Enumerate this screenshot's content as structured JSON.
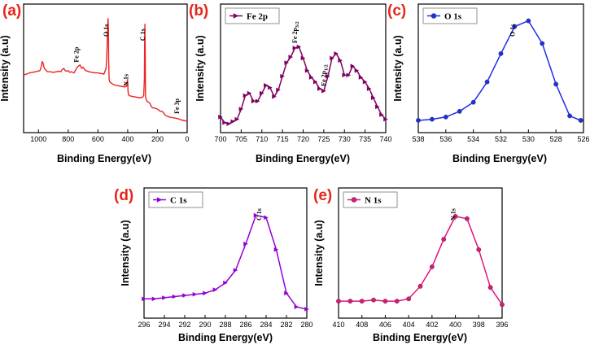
{
  "chart_data": [
    {
      "id": "a",
      "type": "line",
      "panel_label": "(a)",
      "xlabel": "Binding Energy(eV)",
      "ylabel": "Intensity (a.u)",
      "xlim": [
        1100,
        0
      ],
      "ylim": [
        0,
        1
      ],
      "xticks": [
        1000,
        800,
        600,
        400,
        200,
        0
      ],
      "color": "#ee2222",
      "marker": "none",
      "legend": "",
      "annotations": [
        "Fe 2p",
        "O 1s",
        "N 1s",
        "C 1s",
        "Fe 3p"
      ],
      "ann_x": [
        730,
        530,
        398,
        285,
        55
      ],
      "series": [
        {
          "name": "",
          "x": [
            1100,
            1060,
            1020,
            990,
            980,
            975,
            970,
            965,
            960,
            955,
            950,
            940,
            920,
            900,
            880,
            860,
            850,
            840,
            830,
            820,
            810,
            800,
            790,
            780,
            760,
            740,
            720,
            710,
            700,
            690,
            680,
            660,
            640,
            620,
            600,
            580,
            560,
            545,
            540,
            535,
            532,
            530,
            528,
            525,
            520,
            510,
            500,
            490,
            480,
            460,
            440,
            420,
            410,
            404,
            402,
            400,
            398,
            395,
            390,
            380,
            360,
            340,
            320,
            300,
            292,
            288,
            286,
            284,
            282,
            280,
            275,
            270,
            260,
            250,
            240,
            230,
            220,
            210,
            200,
            190,
            180,
            170,
            160,
            150,
            140,
            120,
            100,
            80,
            60,
            50,
            40,
            30,
            20,
            10,
            0
          ],
          "y": [
            0.44,
            0.46,
            0.47,
            0.48,
            0.52,
            0.56,
            0.55,
            0.52,
            0.5,
            0.49,
            0.485,
            0.47,
            0.47,
            0.465,
            0.47,
            0.475,
            0.47,
            0.49,
            0.5,
            0.48,
            0.475,
            0.48,
            0.465,
            0.47,
            0.46,
            0.51,
            0.53,
            0.5,
            0.51,
            0.49,
            0.48,
            0.47,
            0.465,
            0.46,
            0.46,
            0.455,
            0.45,
            0.5,
            0.62,
            0.84,
            0.94,
            0.85,
            0.58,
            0.4,
            0.38,
            0.37,
            0.36,
            0.355,
            0.35,
            0.345,
            0.34,
            0.335,
            0.34,
            0.36,
            0.4,
            0.38,
            0.3,
            0.27,
            0.26,
            0.255,
            0.25,
            0.245,
            0.24,
            0.245,
            0.26,
            0.4,
            0.7,
            0.89,
            0.6,
            0.25,
            0.22,
            0.21,
            0.2,
            0.19,
            0.16,
            0.15,
            0.15,
            0.145,
            0.14,
            0.13,
            0.12,
            0.12,
            0.11,
            0.09,
            0.08,
            0.07,
            0.065,
            0.06,
            0.055,
            0.05,
            0.045,
            0.04,
            0.04,
            0.035,
            0.03
          ]
        }
      ]
    },
    {
      "id": "b",
      "type": "line",
      "panel_label": "(b)",
      "xlabel": "Binding Energy(eV)",
      "ylabel": "Intensity (a.u)",
      "xlim": [
        700,
        740
      ],
      "ylim": [
        0,
        1
      ],
      "xticks": [
        700,
        705,
        710,
        715,
        720,
        725,
        730,
        735,
        740
      ],
      "color": "#800060",
      "marker": "triangle-right",
      "legend": "Fe 2p",
      "annotations": [
        "Fe 2p3/2",
        "Fe 2p1/2"
      ],
      "ann_x": [
        718.5,
        725.5
      ],
      "series": [
        {
          "name": "Fe 2p",
          "x": [
            700,
            701,
            702,
            703,
            704,
            705,
            706,
            707,
            708,
            709,
            710,
            711,
            712,
            713,
            714,
            715,
            716,
            717,
            718,
            719,
            720,
            721,
            722,
            723,
            724,
            725,
            726,
            727,
            728,
            729,
            730,
            731,
            732,
            733,
            734,
            735,
            736,
            737,
            738,
            739,
            740
          ],
          "y": [
            0.07,
            0.02,
            0.01,
            0.03,
            0.05,
            0.14,
            0.26,
            0.28,
            0.21,
            0.21,
            0.28,
            0.35,
            0.33,
            0.25,
            0.31,
            0.43,
            0.55,
            0.6,
            0.68,
            0.69,
            0.59,
            0.48,
            0.42,
            0.38,
            0.32,
            0.3,
            0.43,
            0.59,
            0.63,
            0.57,
            0.44,
            0.44,
            0.52,
            0.48,
            0.42,
            0.38,
            0.32,
            0.24,
            0.16,
            0.09,
            0.05
          ]
        }
      ]
    },
    {
      "id": "c",
      "type": "line",
      "panel_label": "(c)",
      "xlabel": "Binding Energy(eV)",
      "ylabel": "Intensity (a.u)",
      "xlim": [
        538,
        526
      ],
      "ylim": [
        0,
        1
      ],
      "xticks": [
        538,
        536,
        534,
        532,
        530,
        528,
        526
      ],
      "color": "#1c2ee8",
      "marker": "circle",
      "legend": "O 1s",
      "annotations": [
        "O 1s"
      ],
      "ann_x": [
        531
      ],
      "series": [
        {
          "name": "O 1s",
          "x": [
            538,
            537,
            536,
            535,
            534,
            533,
            532,
            531,
            530,
            529,
            528,
            527,
            526.2
          ],
          "y": [
            0.04,
            0.05,
            0.07,
            0.12,
            0.2,
            0.38,
            0.63,
            0.87,
            0.92,
            0.72,
            0.36,
            0.08,
            0.04
          ]
        }
      ]
    },
    {
      "id": "d",
      "type": "line",
      "panel_label": "(d)",
      "xlabel": "Binding Energy(eV)",
      "ylabel": "Intensity (a.u)",
      "xlim": [
        296,
        280
      ],
      "ylim": [
        0,
        1
      ],
      "xticks": [
        296,
        294,
        292,
        290,
        288,
        286,
        284,
        282,
        280
      ],
      "color": "#9400d3",
      "marker": "triangle-right",
      "legend": "C 1s",
      "annotations": [
        "C 1s"
      ],
      "ann_x": [
        284.5
      ],
      "series": [
        {
          "name": "C 1s",
          "x": [
            296,
            295,
            294,
            293,
            292,
            291,
            290,
            289,
            288,
            287,
            286,
            285,
            284,
            283,
            282,
            281,
            280
          ],
          "y": [
            0.1,
            0.1,
            0.11,
            0.12,
            0.13,
            0.14,
            0.15,
            0.18,
            0.24,
            0.35,
            0.58,
            0.83,
            0.81,
            0.53,
            0.15,
            0.03,
            0.01
          ]
        }
      ]
    },
    {
      "id": "e",
      "type": "line",
      "panel_label": "(e)",
      "xlabel": "Binding Energy(eV)",
      "ylabel": "Intensity (a.u)",
      "xlim": [
        410,
        396
      ],
      "ylim": [
        0,
        1
      ],
      "xticks": [
        410,
        408,
        406,
        404,
        402,
        400,
        398,
        396
      ],
      "color": "#e0157a",
      "marker": "circle",
      "legend": "N 1s",
      "annotations": [
        "N 1s"
      ],
      "ann_x": [
        400
      ],
      "series": [
        {
          "name": "N 1s",
          "x": [
            410,
            409,
            408,
            407,
            406,
            405,
            404,
            403,
            402,
            401,
            400,
            399,
            398,
            397,
            396
          ],
          "y": [
            0.08,
            0.08,
            0.08,
            0.09,
            0.08,
            0.08,
            0.1,
            0.21,
            0.38,
            0.62,
            0.82,
            0.8,
            0.53,
            0.2,
            0.05
          ]
        }
      ]
    }
  ]
}
